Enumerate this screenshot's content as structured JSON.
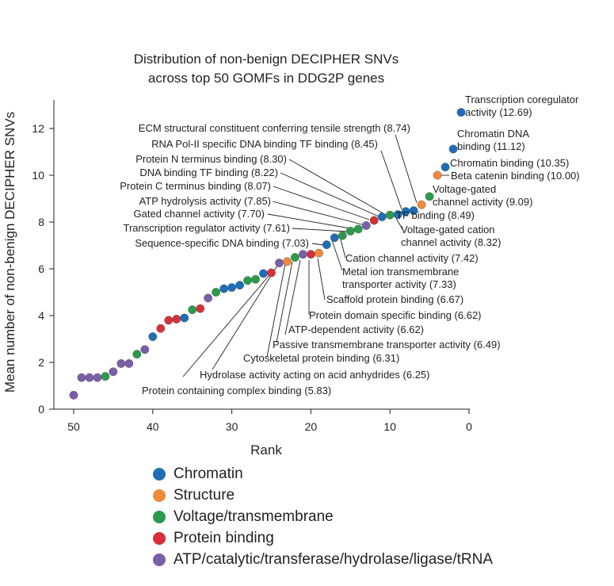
{
  "chart_data": {
    "type": "scatter",
    "title": [
      "Distribution of non-benign DECIPHER SNVs",
      "across top 50 GOMFs in DDG2P genes"
    ],
    "xlabel": "Rank",
    "ylabel": "Mean number of non-benign DECIPHER SNVs",
    "xlim": [
      51,
      0
    ],
    "ylim": [
      0,
      13
    ],
    "xticks": [
      "50",
      "40",
      "30",
      "20",
      "10",
      "0"
    ],
    "yticks": [
      "0",
      "2",
      "4",
      "6",
      "8",
      "10",
      "12"
    ],
    "categories": [
      {
        "name": "Chromatin",
        "color": "#1f6eb5"
      },
      {
        "name": "Structure",
        "color": "#ee8a3a"
      },
      {
        "name": "Voltage/transmembrane",
        "color": "#2b9a4a"
      },
      {
        "name": "Protein binding",
        "color": "#d6303a"
      },
      {
        "name": "ATP/catalytic/transferase/hydrolase/ligase/tRNA",
        "color": "#7b5ea8"
      }
    ],
    "points": [
      {
        "rank": 1,
        "value": 12.69,
        "cat": 0
      },
      {
        "rank": 2,
        "value": 11.12,
        "cat": 0
      },
      {
        "rank": 3,
        "value": 10.35,
        "cat": 0
      },
      {
        "rank": 4,
        "value": 10.0,
        "cat": 1
      },
      {
        "rank": 5,
        "value": 9.09,
        "cat": 2
      },
      {
        "rank": 6,
        "value": 8.74,
        "cat": 1
      },
      {
        "rank": 7,
        "value": 8.49,
        "cat": 0
      },
      {
        "rank": 8,
        "value": 8.45,
        "cat": 0
      },
      {
        "rank": 9,
        "value": 8.32,
        "cat": 0
      },
      {
        "rank": 10,
        "value": 8.3,
        "cat": 2
      },
      {
        "rank": 11,
        "value": 8.22,
        "cat": 0
      },
      {
        "rank": 12,
        "value": 8.07,
        "cat": 3
      },
      {
        "rank": 13,
        "value": 7.85,
        "cat": 4
      },
      {
        "rank": 14,
        "value": 7.7,
        "cat": 2
      },
      {
        "rank": 15,
        "value": 7.61,
        "cat": 2
      },
      {
        "rank": 16,
        "value": 7.42,
        "cat": 2
      },
      {
        "rank": 17,
        "value": 7.33,
        "cat": 0
      },
      {
        "rank": 18,
        "value": 7.03,
        "cat": 0
      },
      {
        "rank": 19,
        "value": 6.67,
        "cat": 1
      },
      {
        "rank": 20,
        "value": 6.62,
        "cat": 3
      },
      {
        "rank": 21,
        "value": 6.62,
        "cat": 4
      },
      {
        "rank": 22,
        "value": 6.49,
        "cat": 2
      },
      {
        "rank": 23,
        "value": 6.31,
        "cat": 1
      },
      {
        "rank": 24,
        "value": 6.25,
        "cat": 4
      },
      {
        "rank": 25,
        "value": 5.83,
        "cat": 3
      },
      {
        "rank": 26,
        "value": 5.8,
        "cat": 0
      },
      {
        "rank": 27,
        "value": 5.55,
        "cat": 2
      },
      {
        "rank": 28,
        "value": 5.5,
        "cat": 2
      },
      {
        "rank": 29,
        "value": 5.3,
        "cat": 0
      },
      {
        "rank": 30,
        "value": 5.2,
        "cat": 0
      },
      {
        "rank": 31,
        "value": 5.15,
        "cat": 0
      },
      {
        "rank": 32,
        "value": 5.0,
        "cat": 2
      },
      {
        "rank": 33,
        "value": 4.75,
        "cat": 4
      },
      {
        "rank": 34,
        "value": 4.3,
        "cat": 3
      },
      {
        "rank": 35,
        "value": 4.25,
        "cat": 2
      },
      {
        "rank": 36,
        "value": 3.9,
        "cat": 0
      },
      {
        "rank": 37,
        "value": 3.85,
        "cat": 3
      },
      {
        "rank": 38,
        "value": 3.8,
        "cat": 3
      },
      {
        "rank": 39,
        "value": 3.45,
        "cat": 3
      },
      {
        "rank": 40,
        "value": 3.1,
        "cat": 0
      },
      {
        "rank": 41,
        "value": 2.55,
        "cat": 4
      },
      {
        "rank": 42,
        "value": 2.35,
        "cat": 2
      },
      {
        "rank": 43,
        "value": 1.95,
        "cat": 4
      },
      {
        "rank": 44,
        "value": 1.95,
        "cat": 4
      },
      {
        "rank": 45,
        "value": 1.6,
        "cat": 4
      },
      {
        "rank": 46,
        "value": 1.4,
        "cat": 2
      },
      {
        "rank": 47,
        "value": 1.35,
        "cat": 4
      },
      {
        "rank": 48,
        "value": 1.35,
        "cat": 4
      },
      {
        "rank": 49,
        "value": 1.35,
        "cat": 4
      },
      {
        "rank": 50,
        "value": 0.6,
        "cat": 4
      }
    ],
    "annotations": [
      {
        "rank": 1,
        "lines": [
          "Transcription coregulator",
          "activity (12.69)"
        ]
      },
      {
        "rank": 2,
        "lines": [
          "Chromatin DNA",
          "binding (11.12)"
        ]
      },
      {
        "rank": 3,
        "lines": [
          "Chromatin binding (10.35)"
        ]
      },
      {
        "rank": 4,
        "lines": [
          "Beta catenin binding (10.00)"
        ]
      },
      {
        "rank": 5,
        "lines": [
          "Voltage-gated",
          "channel activity (9.09)"
        ]
      },
      {
        "rank": 6,
        "lines": [
          "ECM structural constituent conferring tensile strength (8.74)"
        ]
      },
      {
        "rank": 7,
        "lines": [
          "TF binding (8.49)"
        ]
      },
      {
        "rank": 8,
        "lines": [
          "RNA Pol-II specific DNA binding TF binding (8.45)"
        ]
      },
      {
        "rank": 9,
        "lines": [
          "Voltage-gated cation",
          "channel activity (8.32)"
        ]
      },
      {
        "rank": 10,
        "lines": [
          "Protein N terminus binding (8.30)"
        ]
      },
      {
        "rank": 11,
        "lines": [
          "DNA binding TF binding (8.22)"
        ]
      },
      {
        "rank": 12,
        "lines": [
          "Protein C terminus binding (8.07)"
        ]
      },
      {
        "rank": 13,
        "lines": [
          "ATP hydrolysis activity (7.85)"
        ]
      },
      {
        "rank": 14,
        "lines": [
          "Gated channel activity (7.70)"
        ]
      },
      {
        "rank": 15,
        "lines": [
          "Transcription regulator activity (7.61)"
        ]
      },
      {
        "rank": 16,
        "lines": [
          "Cation channel activity (7.42)"
        ]
      },
      {
        "rank": 17,
        "lines": [
          "Metal ion transmembrane",
          "transporter activity (7.33)"
        ]
      },
      {
        "rank": 18,
        "lines": [
          "Sequence-specific DNA binding (7.03)"
        ]
      },
      {
        "rank": 19,
        "lines": [
          "Scaffold protein binding (6.67)"
        ]
      },
      {
        "rank": 20,
        "lines": [
          "Protein domain specific binding (6.62)"
        ]
      },
      {
        "rank": 21,
        "lines": [
          "ATP-dependent activity (6.62)"
        ]
      },
      {
        "rank": 22,
        "lines": [
          "Passive transmembrane transporter activity (6.49)"
        ]
      },
      {
        "rank": 23,
        "lines": [
          "Cytoskeletal protein binding (6.31)"
        ]
      },
      {
        "rank": 24,
        "lines": [
          "Hydrolase activity acting on acid anhydrides (6.25)"
        ]
      },
      {
        "rank": 25,
        "lines": [
          "Protein containing complex binding (5.83)"
        ]
      }
    ],
    "legend_position": "bottom"
  }
}
